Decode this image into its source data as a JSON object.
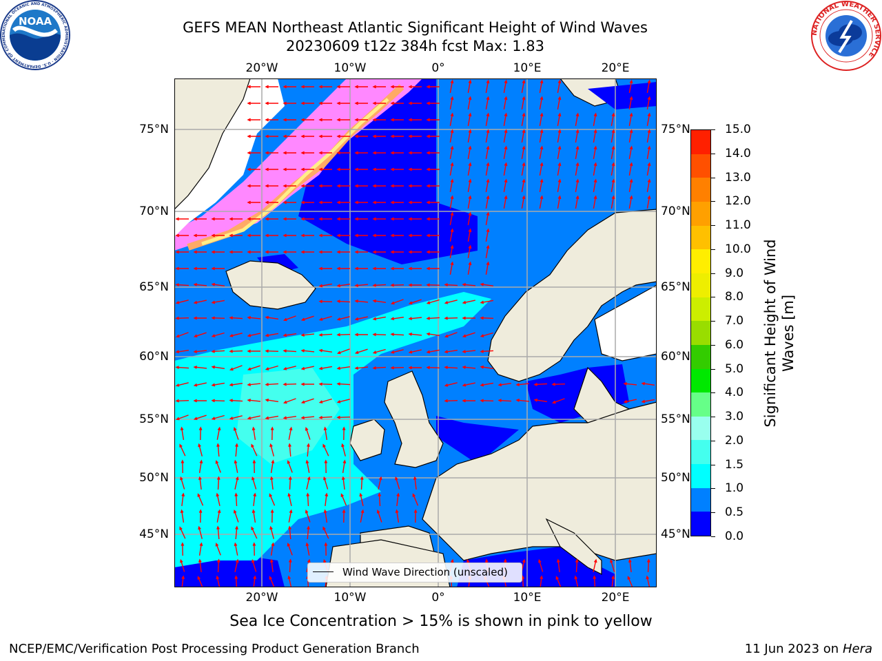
{
  "header": {
    "title_line1": "GEFS MEAN Northeast Atlantic Significant Height of Wind Waves",
    "title_line2": "20230609 t12z 384h fcst   Max: 1.83"
  },
  "logos": {
    "left_text": "NOAA",
    "left_ring_text": "NATIONAL OCEANIC AND ATMOSPHERIC ADMINISTRATION · U.S. DEPARTMENT OF COMMERCE",
    "right_ring_text": "NATIONAL WEATHER SERVICE"
  },
  "map": {
    "lon_ticks_top": [
      "20°W",
      "10°W",
      "0°",
      "10°E",
      "20°E"
    ],
    "lon_ticks_bottom": [
      "20°W",
      "10°W",
      "0°",
      "10°E",
      "20°E"
    ],
    "lat_ticks_left": [
      "75°N",
      "70°N",
      "65°N",
      "60°N",
      "55°N",
      "50°N",
      "45°N"
    ],
    "lat_ticks_right": [
      "75°N",
      "70°N",
      "65°N",
      "60°N",
      "55°N",
      "50°N",
      "45°N"
    ],
    "legend_label": "Wind Wave Direction (unscaled)",
    "arrow_color": "#ff0000",
    "land_color": "#efecdc",
    "ice_note": "Sea Ice Concentration > 15% is shown in pink to yellow"
  },
  "colorbar": {
    "label_line1": "Significant Height of Wind",
    "label_line2": "Waves [m]",
    "ticks": [
      "0.0",
      "0.5",
      "1.0",
      "1.5",
      "2.0",
      "3.0",
      "4.0",
      "5.0",
      "6.0",
      "7.0",
      "8.0",
      "9.0",
      "10.0",
      "11.0",
      "12.0",
      "13.0",
      "14.0",
      "15.0"
    ],
    "colors": [
      "#0000ff",
      "#0080ff",
      "#00ffff",
      "#44ffee",
      "#99ffee",
      "#66ff88",
      "#00e800",
      "#33cc00",
      "#99dd00",
      "#ccee00",
      "#eeee00",
      "#ffee00",
      "#ffc000",
      "#ffa000",
      "#ff8000",
      "#ff5000",
      "#ff2000"
    ]
  },
  "footer": {
    "left": "NCEP/EMC/Verification Post Processing Product Generation Branch",
    "date": "11 Jun 2023 on",
    "machine": "Hera"
  }
}
